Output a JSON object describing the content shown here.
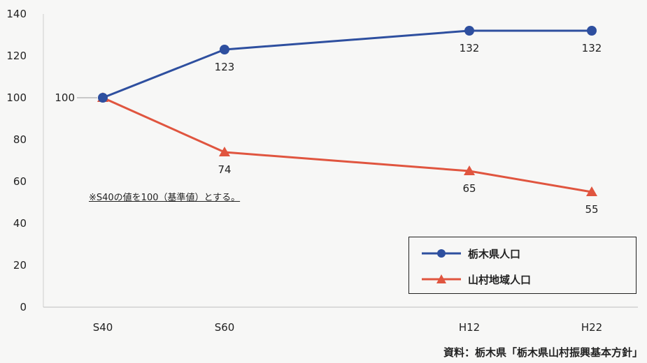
{
  "chart_data": {
    "type": "line",
    "categories": [
      "S40",
      "S60",
      "H12",
      "H22"
    ],
    "ylim": [
      0,
      140
    ],
    "yticks": [
      0,
      20,
      40,
      60,
      80,
      100,
      120,
      140
    ],
    "grid": false,
    "legend_position": "bottom-right",
    "series": [
      {
        "name": "栃木県人口",
        "values": [
          100,
          123,
          132,
          132
        ],
        "color": "#2e4f9f",
        "marker": "circle",
        "labels": [
          "100",
          "123",
          "132",
          "132"
        ]
      },
      {
        "name": "山村地域人口",
        "values": [
          100,
          74,
          65,
          55
        ],
        "color": "#e0553f",
        "marker": "triangle",
        "labels": [
          "",
          "74",
          "65",
          "55"
        ]
      }
    ],
    "note": "※S40の値を100（基準値）とする。",
    "source": "資料：栃木県「栃木県山村振興基本方針」"
  }
}
